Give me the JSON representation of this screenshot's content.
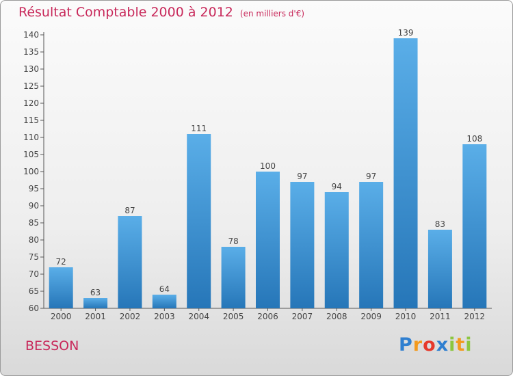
{
  "chart_data": {
    "type": "bar",
    "title": "Résultat Comptable 2000 à 2012",
    "subtitle": "(en milliers d'€)",
    "categories": [
      "2000",
      "2001",
      "2002",
      "2003",
      "2004",
      "2005",
      "2006",
      "2007",
      "2008",
      "2009",
      "2010",
      "2011",
      "2012"
    ],
    "values": [
      72,
      63,
      87,
      64,
      111,
      78,
      100,
      97,
      94,
      97,
      139,
      83,
      108
    ],
    "ylim": [
      60,
      140
    ],
    "yticks": [
      60,
      65,
      70,
      75,
      80,
      85,
      90,
      95,
      100,
      105,
      110,
      115,
      120,
      125,
      130,
      135,
      140
    ],
    "xlabel": "",
    "ylabel": "",
    "grid": false
  },
  "commune": "BESSON",
  "logo": {
    "letters": [
      "P",
      "r",
      "o",
      "x",
      "i",
      "t",
      "i"
    ],
    "colors": [
      "#2f7fd0",
      "#f39a1e",
      "#e6392b",
      "#2f7fd0",
      "#8cc63f",
      "#f39a1e",
      "#8cc63f"
    ]
  },
  "colors": {
    "title": "#c8285a",
    "bar_top": "#5aaee8",
    "bar_bottom": "#2676b8",
    "axis": "#555555"
  }
}
